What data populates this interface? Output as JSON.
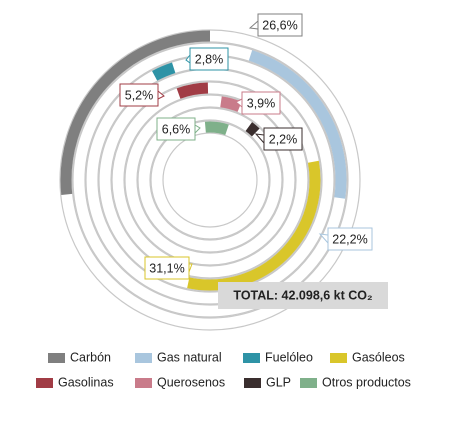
{
  "chart_data": {
    "type": "radial-bar",
    "total": "TOTAL: 42.098,6 kt CO₂",
    "categories": [
      "Carbón",
      "Gas natural",
      "Fuelóleo",
      "Gasóleos",
      "Gasolinas",
      "Querosenos",
      "GLP",
      "Otros productos"
    ],
    "values": [
      26.6,
      22.2,
      2.8,
      31.1,
      5.2,
      3.9,
      2.2,
      6.6
    ],
    "value_labels": [
      "26,6%",
      "22,2%",
      "2,8%",
      "31,1%",
      "5,2%",
      "3,9%",
      "2,2%",
      "6,6%"
    ],
    "colors": [
      "#7f7f7f",
      "#a9c6de",
      "#2e93a6",
      "#d9c62a",
      "#a13c45",
      "#c97b8a",
      "#3a2e2e",
      "#7fb08a"
    ],
    "full_scale": 100
  }
}
